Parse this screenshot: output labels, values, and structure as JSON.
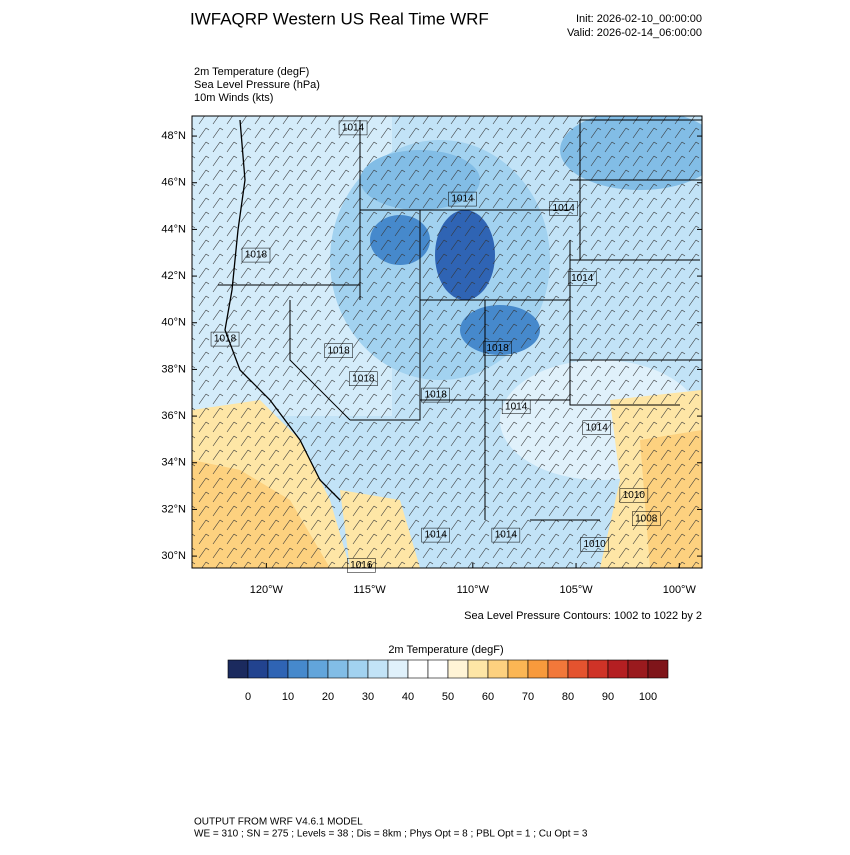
{
  "header": {
    "title": "IWFAQRP Western US Real Time WRF",
    "init": "Init: 2026-02-10_00:00:00",
    "valid": "Valid: 2026-02-14_06:00:00"
  },
  "fields": [
    "2m Temperature   (degF)",
    "Sea Level Pressure   (hPa)",
    "10m Winds   (kts)"
  ],
  "map": {
    "lon_range": [
      -123.6,
      -98.9
    ],
    "lat_range": [
      29.49,
      48.86
    ],
    "lat_ticks": [
      {
        "value": 30,
        "label": "30°N"
      },
      {
        "value": 32,
        "label": "32°N"
      },
      {
        "value": 34,
        "label": "34°N"
      },
      {
        "value": 36,
        "label": "36°N"
      },
      {
        "value": 38,
        "label": "38°N"
      },
      {
        "value": 40,
        "label": "40°N"
      },
      {
        "value": 42,
        "label": "42°N"
      },
      {
        "value": 44,
        "label": "44°N"
      },
      {
        "value": 46,
        "label": "46°N"
      },
      {
        "value": 48,
        "label": "48°N"
      }
    ],
    "lon_ticks": [
      {
        "value": -120,
        "label": "120°W"
      },
      {
        "value": -115,
        "label": "115°W"
      },
      {
        "value": -110,
        "label": "110°W"
      },
      {
        "value": -105,
        "label": "105°W"
      },
      {
        "value": -100,
        "label": "100°W"
      }
    ],
    "isobar_labels": [
      {
        "text": 1014,
        "lon": -115.8,
        "lat": 48.35
      },
      {
        "text": 1014,
        "lon": -110.5,
        "lat": 45.3
      },
      {
        "text": 1014,
        "lon": -105.6,
        "lat": 44.9
      },
      {
        "text": 1018,
        "lon": -120.5,
        "lat": 42.9
      },
      {
        "text": 1014,
        "lon": -104.7,
        "lat": 41.9
      },
      {
        "text": 1018,
        "lon": -122.0,
        "lat": 39.3
      },
      {
        "text": 1018,
        "lon": -116.5,
        "lat": 38.8
      },
      {
        "text": 1018,
        "lon": -108.8,
        "lat": 38.9
      },
      {
        "text": 1018,
        "lon": -115.3,
        "lat": 37.6
      },
      {
        "text": 1018,
        "lon": -111.8,
        "lat": 36.9
      },
      {
        "text": 1014,
        "lon": -107.9,
        "lat": 36.4
      },
      {
        "text": 1014,
        "lon": -104.0,
        "lat": 35.5
      },
      {
        "text": 1014,
        "lon": -111.8,
        "lat": 30.9
      },
      {
        "text": 1014,
        "lon": -108.4,
        "lat": 30.9
      },
      {
        "text": 1016,
        "lon": -115.4,
        "lat": 29.6
      },
      {
        "text": 1010,
        "lon": -104.1,
        "lat": 30.5
      },
      {
        "text": 1010,
        "lon": -102.2,
        "lat": 32.6
      },
      {
        "text": 1008,
        "lon": -101.6,
        "lat": 31.6
      }
    ],
    "contour_note": "Sea Level Pressure Contours: 1002 to 1022 by 2"
  },
  "colorbar": {
    "title": "2m Temperature  (degF)",
    "colors": [
      "#1b2a5e",
      "#22438f",
      "#2f64b4",
      "#4689cc",
      "#62a5db",
      "#82bde6",
      "#a2d2f0",
      "#c2e3f7",
      "#e0f1fb",
      "#ffffff",
      "#ffffff",
      "#fff4d6",
      "#fee6a6",
      "#fdd17f",
      "#fbb654",
      "#f89a3c",
      "#f2783a",
      "#e4532f",
      "#cf3327",
      "#b41f22",
      "#9a1a1e",
      "#7f151a"
    ],
    "ticks": [
      0,
      10,
      20,
      30,
      40,
      50,
      60,
      70,
      80,
      90,
      100
    ],
    "start": -5,
    "step": 5
  },
  "footer": {
    "line1": "OUTPUT FROM WRF V4.6.1 MODEL",
    "line2": "WE = 310 ; SN = 275 ; Levels = 38 ; Dis = 8km ; Phys Opt = 8 ; PBL Opt = 1 ; Cu Opt = 3"
  }
}
